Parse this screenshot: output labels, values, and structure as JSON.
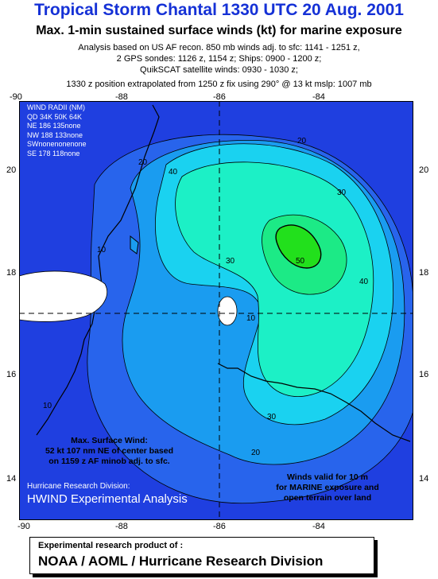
{
  "header": {
    "title": "Tropical Storm Chantal  1330 UTC 20 Aug. 2001",
    "subtitle": "Max. 1-min sustained surface winds (kt) for marine exposure",
    "info_lines": [
      "Analysis based on US AF recon. 850 mb winds adj. to sfc: 1141 - 1251 z,",
      "2 GPS sondes: 1126 z, 1154 z; Ships: 0900 - 1200 z;",
      "QuikSCAT satellite winds: 0930 - 1030 z;",
      "1330 z position extrapolated from 1250 z fix using 290° @ 13 kt  mslp: 1007 mb"
    ]
  },
  "axes": {
    "lon_ticks": [
      "-90",
      "-88",
      "-86",
      "-84"
    ],
    "lat_ticks": [
      "20",
      "18",
      "16",
      "14"
    ]
  },
  "wind_radii": {
    "lines": [
      "WIND RADII (NM)",
      "QD  34K  50K  64K",
      "NE  186  135none",
      "NW  188  133none",
      "SWnonenonenone",
      "SE  178  118none"
    ]
  },
  "contour_labels": [
    "10",
    "20",
    "30",
    "40",
    "50"
  ],
  "annotations": {
    "max_wind": [
      "Max. Surface Wind:",
      "52 kt 107 nm NE of  center based",
      "on 1159 z AF minob adj. to sfc."
    ],
    "valid": [
      "Winds valid for 10 m",
      "for MARINE exposure  and",
      "open terrain over land"
    ],
    "credit_small": "Hurricane Research Division:",
    "credit_large": "HWIND Experimental Analysis"
  },
  "footer": {
    "line1": "Experimental research product of :",
    "line2": "NOAA / AOML / Hurricane Research Division"
  },
  "colors": {
    "title": "#1531d6",
    "background": "#1f3fe0",
    "band_10": "#2864ec",
    "band_20": "#1a9cf0",
    "band_30": "#1ad2f0",
    "band_40": "#1cf0c6",
    "band_45": "#1cea86",
    "band_50": "#22e01c"
  }
}
